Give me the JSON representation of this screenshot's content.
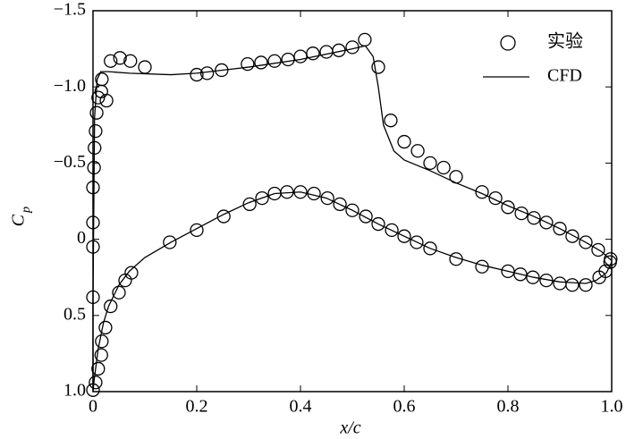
{
  "chart_data": {
    "type": "line",
    "x_label": "x/c",
    "y_label": {
      "main": "C",
      "sub": "p"
    },
    "xlim": [
      0,
      1.0
    ],
    "xticks": [
      0,
      0.2,
      0.4,
      0.6,
      0.8,
      {
        "value": 1.0,
        "label": "1.0"
      }
    ],
    "ylim": [
      -1.5,
      1.0
    ],
    "y_inverted": true,
    "yticks": [
      {
        "value": -1.5,
        "label": "−1.5"
      },
      {
        "value": -1.0,
        "label": "−1.0"
      },
      {
        "value": -0.5,
        "label": "−0.5"
      },
      0,
      0.5,
      {
        "value": 1.0,
        "label": "1.0"
      }
    ],
    "legend": "upper right",
    "grid": false,
    "series": [
      {
        "name": "实验",
        "marker": "circle",
        "color": "#000000",
        "x": [
          0,
          0.005,
          0.01,
          0.016,
          0.017,
          0.024,
          0.034,
          0.05,
          0.062,
          0.074,
          0.148,
          0.2,
          0.252,
          0.302,
          0.326,
          0.35,
          0.374,
          0.4,
          0.426,
          0.452,
          0.476,
          0.5,
          0.526,
          0.55,
          0.576,
          0.6,
          0.624,
          0.65,
          0.7,
          0.75,
          0.8,
          0.824,
          0.848,
          0.874,
          0.9,
          0.924,
          0.95,
          0.976,
          0.988,
          0.997,
          0,
          0,
          0,
          0,
          0.002,
          0.003,
          0.005,
          0.007,
          0.01,
          0.016,
          0.026,
          0.017,
          0.034,
          0.052,
          0.072,
          0.1,
          0.2,
          0.22,
          0.248,
          0.298,
          0.324,
          0.35,
          0.376,
          0.4,
          0.424,
          0.45,
          0.474,
          0.5,
          0.524,
          0.55,
          0.574,
          0.6,
          0.626,
          0.65,
          0.676,
          0.7,
          0.75,
          0.776,
          0.8,
          0.826,
          0.85,
          0.874,
          0.9,
          0.924,
          0.95,
          0.974,
          0.998
        ],
        "values": [
          0.99,
          0.94,
          0.85,
          0.76,
          0.67,
          0.58,
          0.44,
          0.35,
          0.27,
          0.22,
          0.02,
          -0.06,
          -0.15,
          -0.23,
          -0.27,
          -0.3,
          -0.31,
          -0.31,
          -0.3,
          -0.27,
          -0.23,
          -0.19,
          -0.15,
          -0.1,
          -0.06,
          -0.02,
          0.02,
          0.06,
          0.13,
          0.18,
          0.21,
          0.23,
          0.25,
          0.27,
          0.29,
          0.3,
          0.3,
          0.25,
          0.21,
          0.15,
          0.38,
          0.05,
          -0.11,
          -0.34,
          -0.47,
          -0.6,
          -0.71,
          -0.83,
          -0.93,
          -0.97,
          -0.91,
          -1.05,
          -1.17,
          -1.19,
          -1.17,
          -1.13,
          -1.08,
          -1.09,
          -1.11,
          -1.15,
          -1.16,
          -1.17,
          -1.18,
          -1.2,
          -1.22,
          -1.23,
          -1.24,
          -1.26,
          -1.31,
          -1.13,
          -0.78,
          -0.64,
          -0.58,
          -0.5,
          -0.47,
          -0.41,
          -0.31,
          -0.27,
          -0.21,
          -0.17,
          -0.14,
          -0.11,
          -0.07,
          -0.02,
          0.02,
          0.07,
          0.13
        ]
      },
      {
        "name": "CFD",
        "color": "#000000",
        "x": [
          1.0,
          0.99,
          0.97,
          0.95,
          0.9,
          0.85,
          0.8,
          0.75,
          0.7,
          0.65,
          0.6,
          0.55,
          0.5,
          0.45,
          0.4,
          0.35,
          0.3,
          0.25,
          0.2,
          0.15,
          0.1,
          0.07,
          0.05,
          0.03,
          0.02,
          0.01,
          0.005,
          0.002,
          0,
          0,
          0.001,
          0.002,
          0.003,
          0.008,
          0.015,
          0.03,
          0.07,
          0.15,
          0.2,
          0.3,
          0.4,
          0.5,
          0.525,
          0.54,
          0.55,
          0.56,
          0.58,
          0.6,
          0.65,
          0.7,
          0.75,
          0.8,
          0.85,
          0.9,
          0.95,
          0.98,
          1.0
        ],
        "values": [
          0.15,
          0.22,
          0.27,
          0.29,
          0.28,
          0.25,
          0.21,
          0.17,
          0.12,
          0.06,
          -0.02,
          -0.1,
          -0.19,
          -0.27,
          -0.31,
          -0.3,
          -0.24,
          -0.16,
          -0.07,
          0.02,
          0.12,
          0.21,
          0.3,
          0.44,
          0.55,
          0.72,
          0.85,
          0.93,
          1.0,
          0.4,
          0,
          -0.4,
          -0.8,
          -1.05,
          -1.1,
          -1.1,
          -1.09,
          -1.08,
          -1.09,
          -1.13,
          -1.18,
          -1.25,
          -1.27,
          -1.2,
          -1.0,
          -0.75,
          -0.58,
          -0.52,
          -0.45,
          -0.37,
          -0.3,
          -0.22,
          -0.15,
          -0.07,
          0.02,
          0.08,
          0.14
        ]
      }
    ]
  }
}
